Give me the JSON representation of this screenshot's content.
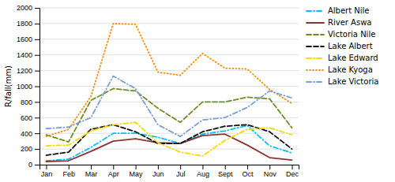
{
  "chart_data": {
    "type": "line",
    "y_label": "R/fall(mm)",
    "categories": [
      "Jan",
      "Feb",
      "Mar",
      "Apr",
      "May",
      "Jun",
      "Jul",
      "Aug",
      "Sept",
      "Oct",
      "Nov",
      "Dec"
    ],
    "series": [
      {
        "name": "Albert Nile",
        "color": "#00BFFF",
        "line_style": "dashdot",
        "values": [
          50,
          70,
          220,
          400,
          400,
          350,
          270,
          390,
          430,
          500,
          240,
          150
        ]
      },
      {
        "name": "River Aswa",
        "color": "#8B3333",
        "line_style": "solid",
        "values": [
          40,
          50,
          170,
          300,
          330,
          280,
          270,
          370,
          390,
          250,
          90,
          60
        ]
      },
      {
        "name": "Victoria Nile",
        "color": "#6B8E23",
        "line_style": "dashed",
        "values": [
          380,
          290,
          820,
          970,
          940,
          720,
          540,
          800,
          800,
          860,
          840,
          470
        ]
      },
      {
        "name": "Lake Albert",
        "color": "#111111",
        "line_style": "dashed",
        "values": [
          120,
          160,
          450,
          510,
          420,
          270,
          270,
          420,
          490,
          510,
          420,
          200
        ]
      },
      {
        "name": "Lake Edward",
        "color": "#FFD700",
        "line_style": "dashdot",
        "values": [
          240,
          250,
          430,
          510,
          540,
          280,
          160,
          110,
          310,
          450,
          470,
          380
        ]
      },
      {
        "name": "Lake Kyoga",
        "color": "#FF8C00",
        "line_style": "dotted",
        "values": [
          360,
          450,
          870,
          1800,
          1790,
          1180,
          1140,
          1420,
          1230,
          1220,
          960,
          780
        ]
      },
      {
        "name": "Lake Victoria",
        "color": "#7B9ED9",
        "line_style": "dashdot",
        "values": [
          460,
          480,
          600,
          1130,
          970,
          510,
          360,
          570,
          600,
          730,
          940,
          850
        ]
      }
    ],
    "ylim": [
      0,
      2000
    ],
    "yticks": [
      0,
      200,
      400,
      600,
      800,
      1000,
      1200,
      1400,
      1600,
      1800,
      2000
    ],
    "grid": true,
    "legend": "right"
  }
}
